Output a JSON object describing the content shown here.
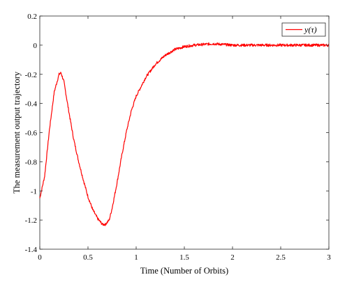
{
  "chart_data": {
    "type": "line",
    "xlabel": "Time (Number of Orbits)",
    "ylabel": "The measurement output trajectory",
    "xlim": [
      0,
      3
    ],
    "ylim": [
      -1.4,
      0.2
    ],
    "x_ticks": [
      0,
      0.5,
      1,
      1.5,
      2,
      2.5,
      3
    ],
    "x_tick_labels": [
      "0",
      "0.5",
      "1",
      "1.5",
      "2",
      "2.5",
      "3"
    ],
    "y_ticks": [
      -1.4,
      -1.2,
      -1,
      -0.8,
      -0.6,
      -0.4,
      -0.2,
      0,
      0.2
    ],
    "y_tick_labels": [
      "-1.4",
      "-1.2",
      "-1",
      "-0.8",
      "-0.6",
      "-0.4",
      "-0.2",
      "0",
      "0.2"
    ],
    "grid": false,
    "legend_position": "top-right",
    "series": [
      {
        "name": "y(τ)",
        "color": "#ff0000",
        "x": [
          0,
          0.05,
          0.1,
          0.15,
          0.2,
          0.22,
          0.25,
          0.3,
          0.35,
          0.4,
          0.45,
          0.5,
          0.55,
          0.6,
          0.65,
          0.68,
          0.72,
          0.75,
          0.8,
          0.85,
          0.9,
          0.95,
          1.0,
          1.1,
          1.2,
          1.3,
          1.4,
          1.5,
          1.6,
          1.7,
          1.8,
          2.0,
          2.2,
          2.4,
          2.6,
          2.8,
          3.0
        ],
        "y": [
          -1.05,
          -0.9,
          -0.58,
          -0.32,
          -0.2,
          -0.19,
          -0.25,
          -0.45,
          -0.64,
          -0.79,
          -0.92,
          -1.04,
          -1.13,
          -1.19,
          -1.23,
          -1.23,
          -1.2,
          -1.12,
          -0.95,
          -0.76,
          -0.59,
          -0.45,
          -0.35,
          -0.22,
          -0.13,
          -0.07,
          -0.03,
          -0.01,
          0.0,
          0.005,
          0.01,
          0.0,
          0.0,
          0.0,
          0.0,
          0.0,
          0.0
        ]
      }
    ]
  }
}
